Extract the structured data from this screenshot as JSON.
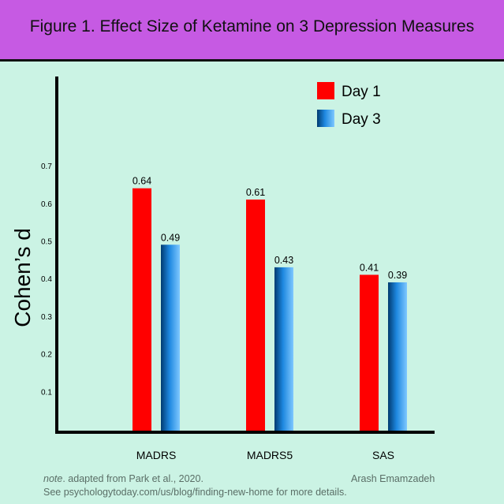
{
  "header": {
    "title": "Figure 1. Effect Size of Ketamine on 3 Depression Measures"
  },
  "colors": {
    "header_bg": "#c65ae3",
    "background": "#cbf3e4",
    "day1": "#ff0000",
    "day3_dark": "#003a70",
    "day3_light": "#7fc8ff"
  },
  "chart_data": {
    "type": "bar",
    "title": "Figure 1. Effect Size of Ketamine on 3 Depression Measures",
    "xlabel": "",
    "ylabel": "Cohen’s d",
    "categories": [
      "MADRS",
      "MADRS5",
      "SAS"
    ],
    "series": [
      {
        "name": "Day 1",
        "values": [
          0.64,
          0.61,
          0.41
        ],
        "labels": [
          "0.64",
          "0.61",
          "0.41"
        ]
      },
      {
        "name": "Day 3",
        "values": [
          0.49,
          0.43,
          0.39
        ],
        "labels": [
          "0.49",
          "0.43",
          "0.39"
        ]
      }
    ],
    "yticks": [
      "0.1",
      "0.2",
      "0.3",
      "0.4",
      "0.5",
      "0.6",
      "0.7"
    ],
    "ylim": [
      0,
      0.95
    ],
    "grid": false,
    "legend": "top-right"
  },
  "footer": {
    "note_prefix": "note",
    "note_text": ". adapted from Park et al., 2020.",
    "credit": "Arash Emamzadeh",
    "details": "See psychologytoday.com/us/blog/finding-new-home for more details."
  }
}
